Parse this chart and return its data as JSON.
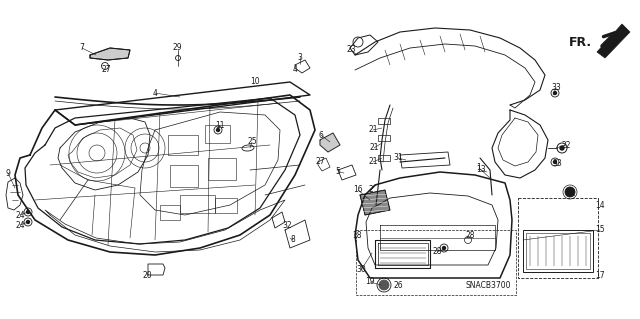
{
  "bg_color": "#ffffff",
  "line_color": "#1a1a1a",
  "fig_width": 6.4,
  "fig_height": 3.19,
  "dpi": 100,
  "fr_label": "FR.",
  "snacb_label": "SNACB3700"
}
